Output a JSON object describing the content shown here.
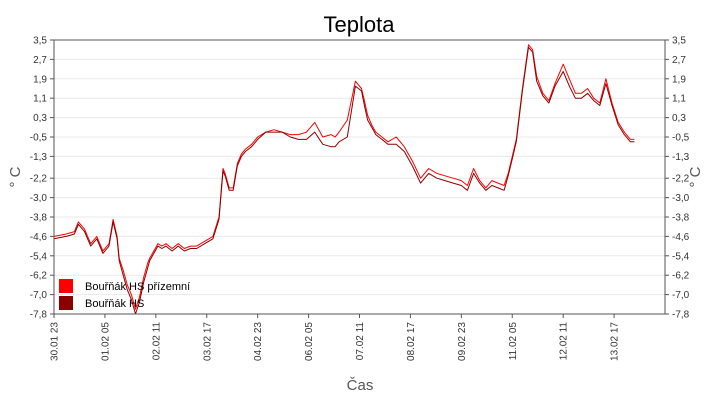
{
  "chart_data": {
    "type": "line",
    "title": "Teplota",
    "xlabel": "Čas",
    "ylabel": "° C",
    "ylabel_right": "° C",
    "ylim": [
      -7.8,
      3.5
    ],
    "y_ticks": [
      "3,5",
      "2,7",
      "1,9",
      "1,1",
      "0,3",
      "-0,5",
      "-1,3",
      "-2,2",
      "-3,0",
      "-3,8",
      "-4,6",
      "-5,4",
      "-6,2",
      "-7,0",
      "-7,8"
    ],
    "y_tick_values": [
      3.5,
      2.7,
      1.9,
      1.1,
      0.3,
      -0.5,
      -1.3,
      -2.2,
      -3.0,
      -3.8,
      -4.6,
      -5.4,
      -6.2,
      -7.0,
      -7.8
    ],
    "x_range": [
      0,
      15
    ],
    "x_ticks": [
      "30.01 23",
      "01.02 05",
      "02.02 11",
      "03.02 17",
      "04.02 23",
      "06.02 05",
      "07.02 11",
      "08.02 17",
      "09.02 23",
      "11.02 05",
      "12.02 11",
      "13.02 17"
    ],
    "x_tick_values": [
      0,
      1.25,
      2.5,
      3.75,
      5,
      6.25,
      7.5,
      8.75,
      10,
      11.25,
      12.5,
      13.75
    ],
    "grid": true,
    "legend_position": "bottom-left",
    "series": [
      {
        "name": "Bouřňák HS přízemní",
        "color": "#ff0000",
        "x": [
          0,
          0.3,
          0.5,
          0.6,
          0.75,
          0.9,
          1.05,
          1.2,
          1.35,
          1.45,
          1.55,
          1.6,
          1.7,
          1.8,
          1.9,
          2.0,
          2.1,
          2.2,
          2.3,
          2.35,
          2.45,
          2.55,
          2.65,
          2.75,
          2.9,
          3.05,
          3.2,
          3.35,
          3.5,
          3.7,
          3.9,
          4.05,
          4.15,
          4.2,
          4.3,
          4.4,
          4.5,
          4.6,
          4.7,
          4.85,
          5.0,
          5.2,
          5.4,
          5.6,
          5.8,
          6.0,
          6.2,
          6.4,
          6.6,
          6.8,
          6.9,
          7.0,
          7.2,
          7.4,
          7.55,
          7.62,
          7.7,
          7.8,
          7.9,
          8.05,
          8.2,
          8.4,
          8.6,
          8.8,
          9.0,
          9.2,
          9.4,
          9.6,
          9.8,
          10.0,
          10.15,
          10.3,
          10.45,
          10.6,
          10.75,
          10.9,
          11.05,
          11.15,
          11.25,
          11.35,
          11.5,
          11.65,
          11.75,
          11.85,
          12.0,
          12.15,
          12.3,
          12.5,
          12.65,
          12.8,
          12.95,
          13.1,
          13.25,
          13.4,
          13.55,
          13.7,
          13.85,
          14.0,
          14.15,
          14.25
        ],
        "values": [
          -4.6,
          -4.5,
          -4.4,
          -4.0,
          -4.3,
          -4.9,
          -4.6,
          -5.2,
          -4.9,
          -3.9,
          -4.6,
          -5.5,
          -6.0,
          -6.6,
          -7.0,
          -7.6,
          -7.1,
          -6.3,
          -5.7,
          -5.5,
          -5.2,
          -4.9,
          -5.0,
          -4.9,
          -5.1,
          -4.9,
          -5.1,
          -5.0,
          -5.0,
          -4.8,
          -4.6,
          -3.8,
          -1.8,
          -2.0,
          -2.6,
          -2.6,
          -1.6,
          -1.2,
          -1.0,
          -0.8,
          -0.5,
          -0.3,
          -0.2,
          -0.3,
          -0.4,
          -0.4,
          -0.3,
          0.1,
          -0.5,
          -0.4,
          -0.5,
          -0.3,
          0.2,
          1.8,
          1.5,
          1.0,
          0.4,
          0.0,
          -0.3,
          -0.5,
          -0.7,
          -0.5,
          -0.9,
          -1.5,
          -2.2,
          -1.8,
          -2.0,
          -2.1,
          -2.2,
          -2.3,
          -2.5,
          -1.8,
          -2.3,
          -2.6,
          -2.3,
          -2.4,
          -2.5,
          -2.0,
          -1.3,
          -0.6,
          1.5,
          3.3,
          3.1,
          2.0,
          1.3,
          1.0,
          1.7,
          2.5,
          1.9,
          1.3,
          1.3,
          1.5,
          1.1,
          0.9,
          1.9,
          0.9,
          0.1,
          -0.3,
          -0.6,
          -0.6
        ]
      },
      {
        "name": "Bouřňák HS",
        "color": "#8b0000",
        "x": [
          0,
          0.3,
          0.5,
          0.6,
          0.75,
          0.9,
          1.05,
          1.2,
          1.35,
          1.45,
          1.55,
          1.6,
          1.7,
          1.8,
          1.9,
          2.0,
          2.1,
          2.2,
          2.3,
          2.35,
          2.45,
          2.55,
          2.65,
          2.75,
          2.9,
          3.05,
          3.2,
          3.35,
          3.5,
          3.7,
          3.9,
          4.05,
          4.15,
          4.2,
          4.3,
          4.4,
          4.5,
          4.6,
          4.7,
          4.85,
          5.0,
          5.2,
          5.4,
          5.6,
          5.8,
          6.0,
          6.2,
          6.4,
          6.6,
          6.8,
          6.9,
          7.0,
          7.2,
          7.4,
          7.55,
          7.62,
          7.7,
          7.8,
          7.9,
          8.05,
          8.2,
          8.4,
          8.6,
          8.8,
          9.0,
          9.2,
          9.4,
          9.6,
          9.8,
          10.0,
          10.15,
          10.3,
          10.45,
          10.6,
          10.75,
          10.9,
          11.05,
          11.15,
          11.25,
          11.35,
          11.5,
          11.65,
          11.75,
          11.85,
          12.0,
          12.15,
          12.3,
          12.5,
          12.65,
          12.8,
          12.95,
          13.1,
          13.25,
          13.4,
          13.55,
          13.7,
          13.85,
          14.0,
          14.15,
          14.25
        ],
        "values": [
          -4.7,
          -4.6,
          -4.5,
          -4.1,
          -4.4,
          -5.0,
          -4.7,
          -5.3,
          -5.0,
          -4.0,
          -4.7,
          -5.6,
          -6.2,
          -6.8,
          -7.2,
          -7.8,
          -7.3,
          -6.5,
          -5.9,
          -5.6,
          -5.3,
          -5.0,
          -5.1,
          -5.0,
          -5.2,
          -5.0,
          -5.2,
          -5.1,
          -5.1,
          -4.9,
          -4.7,
          -3.9,
          -1.9,
          -2.1,
          -2.7,
          -2.7,
          -1.7,
          -1.3,
          -1.1,
          -0.9,
          -0.6,
          -0.3,
          -0.3,
          -0.3,
          -0.5,
          -0.6,
          -0.6,
          -0.3,
          -0.8,
          -0.9,
          -0.9,
          -0.7,
          -0.5,
          1.6,
          1.4,
          0.8,
          0.2,
          -0.1,
          -0.4,
          -0.6,
          -0.8,
          -0.8,
          -1.1,
          -1.7,
          -2.4,
          -2.0,
          -2.2,
          -2.3,
          -2.4,
          -2.5,
          -2.7,
          -2.0,
          -2.4,
          -2.7,
          -2.5,
          -2.6,
          -2.7,
          -2.1,
          -1.4,
          -0.7,
          1.4,
          3.2,
          3.0,
          1.8,
          1.2,
          0.9,
          1.6,
          2.2,
          1.6,
          1.1,
          1.1,
          1.3,
          1.0,
          0.8,
          1.7,
          0.8,
          0.0,
          -0.4,
          -0.7,
          -0.7
        ]
      }
    ]
  }
}
